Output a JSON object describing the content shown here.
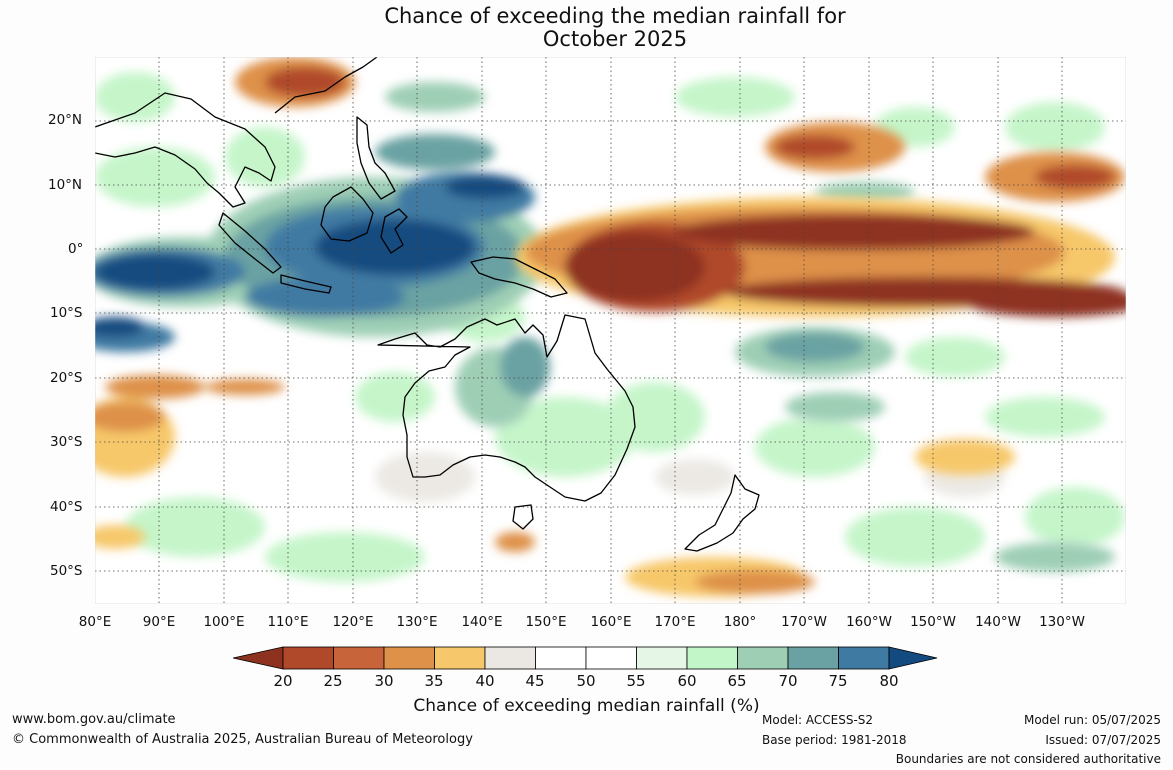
{
  "title": [
    "Chance of exceeding the median rainfall for",
    "October 2025"
  ],
  "lat_labels": [
    "20°N",
    "10°N",
    "0°",
    "10°S",
    "20°S",
    "30°S",
    "40°S",
    "50°S"
  ],
  "lon_labels": [
    "80°E",
    "90°E",
    "100°E",
    "110°E",
    "120°E",
    "130°E",
    "140°E",
    "150°E",
    "160°E",
    "170°E",
    "180°",
    "170°W",
    "160°W",
    "150°W",
    "140°W",
    "130°W"
  ],
  "colorbar": {
    "title": "Chance of exceeding median rainfall (%)",
    "ticks": [
      "20",
      "25",
      "30",
      "35",
      "40",
      "45",
      "50",
      "55",
      "60",
      "65",
      "70",
      "75",
      "80"
    ],
    "colors": [
      "#8e3220",
      "#b0482a",
      "#c8643a",
      "#de9148",
      "#f7c86b",
      "#ebe8e3",
      "#ffffff",
      "#ffffff",
      "#e6f6e6",
      "#c2f5c7",
      "#9ecfb5",
      "#6aa2a3",
      "#3f7aa3",
      "#134b80"
    ]
  },
  "footer": {
    "website": "www.bom.gov.au/climate",
    "copyright": "© Commonwealth of Australia 2025, Australian Bureau of Meteorology",
    "model": "Model: ACCESS-S2",
    "base_period": "Base period: 1981-2018",
    "model_run": "Model run: 05/07/2025",
    "issued": "Issued: 07/07/2025",
    "disclaimer": "Boundaries are not considered authoritative"
  }
}
